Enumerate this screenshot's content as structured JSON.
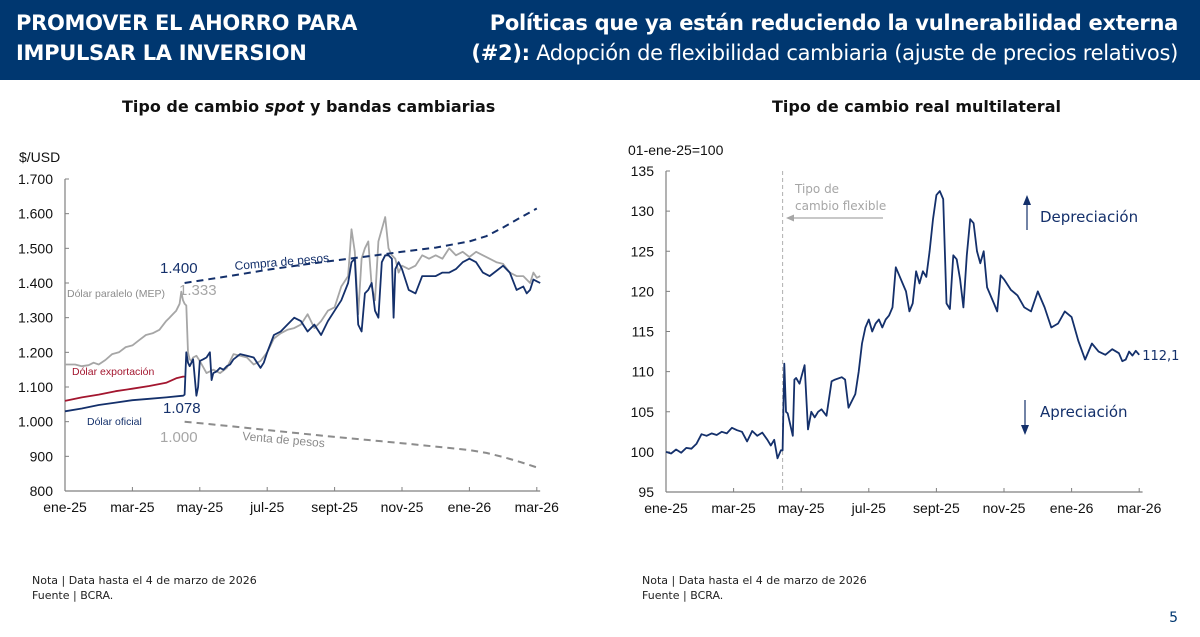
{
  "header": {
    "left_line1": "PROMOVER EL AHORRO PARA",
    "left_line2": "IMPULSAR LA INVERSION",
    "right_line1": "Políticas que ya están reduciendo la vulnerabilidad externa",
    "right_line2_bold": "(#2):",
    "right_line2_rest": " Adopción de flexibilidad cambiaria (ajuste de precios relativos)",
    "bg_color": "#003770"
  },
  "page_number": "5",
  "colors": {
    "navy": "#14306b",
    "gray": "#a6a6a6",
    "red": "#a3162f",
    "band_dark": "#14306b",
    "band_light": "#8c8c8c"
  },
  "chart_data": [
    {
      "type": "line",
      "title_pre": "Tipo de cambio ",
      "title_italic": "spot",
      "title_post": " y bandas cambiarias",
      "ylabel": "$/USD",
      "xlabel": "",
      "ylim": [
        800,
        1700
      ],
      "yticks": [
        1700,
        1600,
        1500,
        1400,
        1300,
        1200,
        1100,
        1000,
        900,
        800
      ],
      "ytick_labels": [
        "1.700",
        "1.600",
        "1.500",
        "1.400",
        "1.300",
        "1.200",
        "1.100",
        "1.000",
        "900",
        "800"
      ],
      "xlim_months": [
        0,
        14.1
      ],
      "xticks_months": [
        0,
        2,
        4,
        6,
        8,
        10,
        12,
        14
      ],
      "xtick_labels": [
        "ene-25",
        "mar-25",
        "may-25",
        "jul-25",
        "sept-25",
        "nov-25",
        "ene-26",
        "mar-26"
      ],
      "grid": false,
      "series": [
        {
          "name": "Dólar paralelo (MEP)",
          "color_key": "gray",
          "x": [
            0,
            0.3,
            0.5,
            0.7,
            0.85,
            1.0,
            1.2,
            1.4,
            1.6,
            1.8,
            2.0,
            2.2,
            2.4,
            2.6,
            2.8,
            3.0,
            3.1,
            3.2,
            3.3,
            3.4,
            3.45,
            3.5,
            3.55,
            3.6,
            3.65,
            3.7,
            3.75,
            3.8,
            3.9,
            4.0,
            4.2,
            4.4,
            4.6,
            4.8,
            5.0,
            5.2,
            5.4,
            5.6,
            5.8,
            6.0,
            6.2,
            6.4,
            6.6,
            6.8,
            7.0,
            7.2,
            7.4,
            7.6,
            7.8,
            8.0,
            8.2,
            8.4,
            8.5,
            8.6,
            8.7,
            8.8,
            8.9,
            9.0,
            9.1,
            9.2,
            9.3,
            9.4,
            9.5,
            9.6,
            9.7,
            9.8,
            9.9,
            10.0,
            10.2,
            10.4,
            10.6,
            10.8,
            11.0,
            11.2,
            11.4,
            11.6,
            11.8,
            12.0,
            12.2,
            12.4,
            12.6,
            12.8,
            13.0,
            13.2,
            13.4,
            13.6,
            13.8,
            13.9,
            14.0,
            14.1
          ],
          "y": [
            1165,
            1165,
            1160,
            1163,
            1170,
            1165,
            1178,
            1195,
            1200,
            1215,
            1220,
            1235,
            1250,
            1255,
            1265,
            1290,
            1300,
            1310,
            1320,
            1340,
            1375,
            1350,
            1340,
            1335,
            1200,
            1180,
            1175,
            1185,
            1190,
            1175,
            1140,
            1150,
            1140,
            1155,
            1195,
            1190,
            1185,
            1165,
            1175,
            1200,
            1240,
            1255,
            1265,
            1270,
            1280,
            1310,
            1270,
            1290,
            1320,
            1330,
            1390,
            1420,
            1555,
            1490,
            1310,
            1470,
            1500,
            1520,
            1390,
            1350,
            1520,
            1555,
            1590,
            1500,
            1480,
            1470,
            1430,
            1450,
            1440,
            1450,
            1480,
            1470,
            1480,
            1470,
            1500,
            1480,
            1490,
            1475,
            1490,
            1480,
            1470,
            1460,
            1455,
            1430,
            1420,
            1420,
            1400,
            1430,
            1415,
            1420
          ]
        },
        {
          "name": "Dólar exportación",
          "color_key": "red",
          "x": [
            0,
            0.5,
            1.0,
            1.5,
            2.0,
            2.5,
            3.0,
            3.3,
            3.5,
            3.55
          ],
          "y": [
            1060,
            1070,
            1078,
            1088,
            1095,
            1103,
            1112,
            1125,
            1130,
            1130
          ]
        },
        {
          "name": "Dólar oficial",
          "color_key": "navy",
          "x": [
            0,
            0.5,
            1.0,
            1.5,
            2.0,
            2.5,
            3.0,
            3.5,
            3.55,
            3.6,
            3.65,
            3.7,
            3.8,
            3.9,
            3.95,
            4.0,
            4.1,
            4.2,
            4.3,
            4.35,
            4.4,
            4.5,
            4.6,
            4.7,
            4.8,
            4.9,
            5.0,
            5.2,
            5.4,
            5.6,
            5.8,
            5.9,
            6.0,
            6.2,
            6.4,
            6.6,
            6.8,
            7.0,
            7.2,
            7.4,
            7.6,
            7.8,
            8.0,
            8.2,
            8.4,
            8.5,
            8.6,
            8.7,
            8.8,
            8.9,
            9.0,
            9.1,
            9.2,
            9.3,
            9.4,
            9.5,
            9.6,
            9.7,
            9.75,
            9.8,
            9.9,
            10.0,
            10.2,
            10.4,
            10.6,
            10.8,
            11.0,
            11.2,
            11.4,
            11.6,
            11.8,
            12.0,
            12.2,
            12.4,
            12.6,
            12.8,
            13.0,
            13.2,
            13.4,
            13.6,
            13.7,
            13.8,
            13.9,
            14.0,
            14.1
          ],
          "y": [
            1030,
            1038,
            1048,
            1055,
            1062,
            1066,
            1070,
            1075,
            1078,
            1200,
            1170,
            1160,
            1180,
            1075,
            1100,
            1175,
            1180,
            1185,
            1200,
            1120,
            1140,
            1145,
            1155,
            1150,
            1160,
            1165,
            1180,
            1195,
            1190,
            1185,
            1155,
            1170,
            1200,
            1250,
            1260,
            1280,
            1300,
            1290,
            1260,
            1280,
            1250,
            1290,
            1320,
            1350,
            1400,
            1460,
            1470,
            1280,
            1260,
            1370,
            1380,
            1400,
            1320,
            1300,
            1460,
            1480,
            1480,
            1470,
            1300,
            1440,
            1460,
            1440,
            1380,
            1370,
            1420,
            1420,
            1420,
            1430,
            1430,
            1440,
            1460,
            1470,
            1460,
            1430,
            1420,
            1435,
            1450,
            1430,
            1380,
            1390,
            1370,
            1380,
            1410,
            1405,
            1400
          ]
        },
        {
          "name": "Compra de pesos",
          "color_key": "band_dark",
          "dashed": true,
          "x": [
            3.55,
            5,
            6,
            7,
            8,
            9,
            10,
            11,
            12,
            12.5,
            13,
            13.5,
            14.0
          ],
          "y": [
            1400,
            1422,
            1438,
            1452,
            1465,
            1477,
            1490,
            1502,
            1520,
            1535,
            1560,
            1588,
            1615
          ]
        },
        {
          "name": "Venta de pesos",
          "color_key": "band_light",
          "dashed": true,
          "x": [
            3.55,
            5,
            6,
            7,
            8,
            9,
            10,
            11,
            12,
            12.5,
            13,
            13.5,
            14.0
          ],
          "y": [
            1000,
            986,
            976,
            966,
            956,
            947,
            938,
            928,
            918,
            910,
            898,
            884,
            868
          ]
        }
      ],
      "annotations": [
        {
          "text": "1.400",
          "color_key": "navy"
        },
        {
          "text": "1.333",
          "color_key": "gray"
        },
        {
          "text": "1.078",
          "color_key": "navy"
        },
        {
          "text": "1.000",
          "color_key": "gray"
        },
        {
          "text": "Compra de pesos",
          "color_key": "navy"
        },
        {
          "text": "Venta de pesos",
          "color_key": "band_light"
        },
        {
          "text": "Dólar paralelo (MEP)",
          "color_key": "gray"
        },
        {
          "text": "Dólar exportación",
          "color_key": "red"
        },
        {
          "text": "Dólar oficial",
          "color_key": "navy"
        }
      ],
      "note": "Nota | Data hasta el 4 de marzo de 2026",
      "source": "Fuente | BCRA."
    },
    {
      "type": "line",
      "title": "Tipo de cambio real multilateral",
      "ylabel": "01-ene-25=100",
      "xlabel": "",
      "ylim": [
        95,
        135
      ],
      "yticks": [
        135,
        130,
        125,
        120,
        115,
        110,
        105,
        100,
        95
      ],
      "ytick_labels": [
        "135",
        "130",
        "125",
        "120",
        "115",
        "110",
        "105",
        "100",
        "95"
      ],
      "xlim_months": [
        0,
        14.1
      ],
      "xticks_months": [
        0,
        2,
        4,
        6,
        8,
        10,
        12,
        14
      ],
      "xtick_labels": [
        "ene-25",
        "mar-25",
        "may-25",
        "jul-25",
        "sept-25",
        "nov-25",
        "ene-26",
        "mar-26"
      ],
      "grid": false,
      "vline_month": 3.45,
      "series": [
        {
          "name": "Tipo de cambio real multilateral",
          "color_key": "navy",
          "x": [
            0,
            0.15,
            0.3,
            0.45,
            0.6,
            0.75,
            0.9,
            1.05,
            1.2,
            1.35,
            1.5,
            1.65,
            1.8,
            1.95,
            2.1,
            2.25,
            2.4,
            2.55,
            2.7,
            2.85,
            3.0,
            3.1,
            3.2,
            3.3,
            3.4,
            3.45,
            3.5,
            3.55,
            3.6,
            3.75,
            3.8,
            3.85,
            3.95,
            4.1,
            4.2,
            4.3,
            4.4,
            4.5,
            4.6,
            4.75,
            4.9,
            5.0,
            5.2,
            5.3,
            5.4,
            5.6,
            5.7,
            5.8,
            5.9,
            6.0,
            6.1,
            6.2,
            6.3,
            6.4,
            6.5,
            6.6,
            6.7,
            6.8,
            6.9,
            7.0,
            7.1,
            7.2,
            7.3,
            7.4,
            7.5,
            7.6,
            7.7,
            7.8,
            7.9,
            8.0,
            8.1,
            8.2,
            8.3,
            8.4,
            8.5,
            8.6,
            8.7,
            8.8,
            8.9,
            9.0,
            9.1,
            9.2,
            9.3,
            9.4,
            9.5,
            9.6,
            9.7,
            9.8,
            9.9,
            10.0,
            10.2,
            10.4,
            10.6,
            10.8,
            11.0,
            11.2,
            11.4,
            11.6,
            11.8,
            12.0,
            12.2,
            12.4,
            12.6,
            12.8,
            13.0,
            13.2,
            13.4,
            13.5,
            13.6,
            13.7,
            13.8,
            13.9,
            14.0
          ],
          "y": [
            100,
            99.8,
            100.3,
            99.9,
            100.5,
            100.4,
            101.0,
            102.2,
            102.0,
            102.3,
            102.1,
            102.5,
            102.3,
            103.0,
            102.7,
            102.5,
            101.3,
            102.6,
            102.0,
            102.4,
            101.5,
            100.8,
            101.5,
            99.2,
            100.2,
            100.2,
            111.0,
            105.0,
            104.8,
            102.0,
            109.0,
            109.2,
            108.5,
            110.8,
            102.8,
            105.0,
            104.3,
            105.0,
            105.3,
            104.5,
            108.8,
            109.0,
            109.3,
            109.0,
            105.5,
            107.2,
            110.0,
            113.5,
            115.5,
            116.5,
            115.0,
            116.0,
            116.5,
            115.5,
            116.5,
            117.0,
            118.0,
            123.0,
            122.0,
            121.0,
            120.0,
            117.5,
            118.5,
            122.5,
            121.0,
            122.5,
            121.8,
            125.0,
            129.0,
            132.0,
            132.5,
            131.5,
            118.5,
            117.8,
            124.5,
            124.0,
            121.5,
            118.0,
            124.5,
            129.0,
            128.5,
            125.0,
            123.5,
            125.0,
            120.5,
            119.5,
            118.5,
            117.5,
            122.0,
            121.5,
            120.2,
            119.5,
            118.0,
            117.5,
            120.0,
            118.0,
            115.5,
            116.0,
            117.5,
            116.8,
            113.8,
            111.5,
            113.5,
            112.5,
            112.1,
            112.8,
            112.3,
            111.3,
            111.5,
            112.5,
            112.0,
            112.6,
            112.1
          ],
          "end_label": "112,1"
        }
      ],
      "annotations": [
        {
          "text_line1": "Tipo de",
          "text_line2": "cambio flexible"
        },
        {
          "text": "Depreciación",
          "arrow": "up"
        },
        {
          "text": "Apreciación",
          "arrow": "down"
        }
      ],
      "note": "Nota | Data hasta el 4 de marzo de 2026",
      "source": "Fuente | BCRA."
    }
  ]
}
